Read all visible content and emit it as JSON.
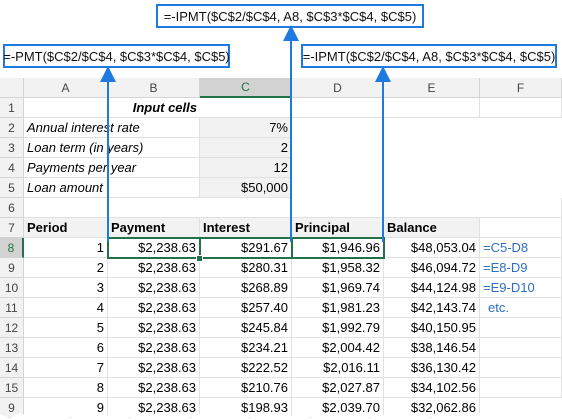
{
  "callouts": {
    "top": "=-IPMT($C$2/$C$4, A8, $C$3*$C$4, $C$5)",
    "left": "=-PMT($C$2/$C$4, $C$3*$C$4, $C$5)",
    "right": "=-IPMT($C$2/$C$4, A8, $C$3*$C$4, $C$5)"
  },
  "columns": [
    "A",
    "B",
    "C",
    "D",
    "E",
    "F"
  ],
  "rows": [
    "1",
    "2",
    "3",
    "4",
    "5",
    "6",
    "7",
    "8",
    "9",
    "10",
    "11",
    "12",
    "13",
    "14",
    "15"
  ],
  "input_title": "Input cells",
  "inputs": [
    {
      "label": "Annual interest rate",
      "value": "7%"
    },
    {
      "label": "Loan term (in years)",
      "value": "2"
    },
    {
      "label": "Payments per year",
      "value": "12"
    },
    {
      "label": "Loan amount",
      "value": "$50,000"
    }
  ],
  "table_headers": [
    "Period",
    "Payment",
    "Interest",
    "Principal",
    "Balance"
  ],
  "table_rows": [
    [
      "1",
      "$2,238.63",
      "$291.67",
      "$1,946.96",
      "$48,053.04",
      "=C5-D8"
    ],
    [
      "2",
      "$2,238.63",
      "$280.31",
      "$1,958.32",
      "$46,094.72",
      "=E8-D9"
    ],
    [
      "3",
      "$2,238.63",
      "$268.89",
      "$1,969.74",
      "$44,124.98",
      "=E9-D10"
    ],
    [
      "4",
      "$2,238.63",
      "$257.40",
      "$1,981.23",
      "$42,143.74",
      "etc."
    ],
    [
      "5",
      "$2,238.63",
      "$245.84",
      "$1,992.79",
      "$40,150.95",
      ""
    ],
    [
      "6",
      "$2,238.63",
      "$234.21",
      "$2,004.42",
      "$38,146.54",
      ""
    ],
    [
      "7",
      "$2,238.63",
      "$222.52",
      "$2,016.11",
      "$36,130.42",
      ""
    ],
    [
      "8",
      "$2,238.63",
      "$210.76",
      "$2,027.87",
      "$34,102.56",
      ""
    ],
    [
      "9",
      "$2,238.63",
      "$198.93",
      "$2,039.70",
      "$32,062.86",
      ""
    ]
  ],
  "colors": {
    "callout_border": "#1f7ae0",
    "selection": "#217346",
    "note_text": "#2e6fbf"
  }
}
